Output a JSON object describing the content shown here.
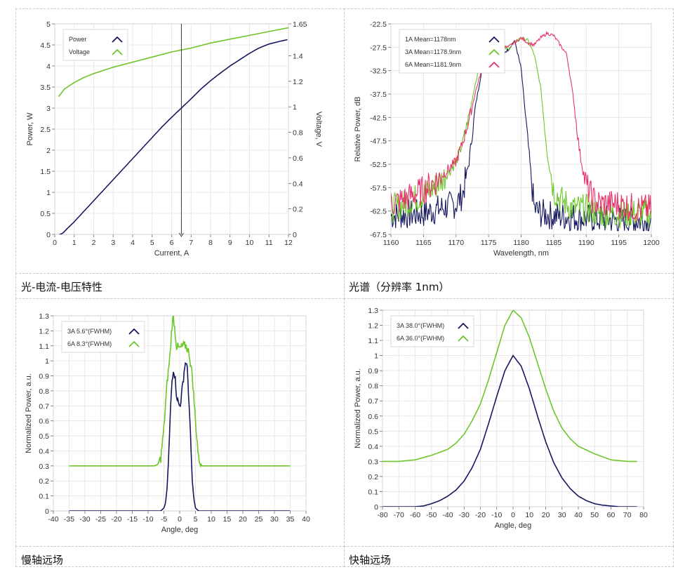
{
  "captions": {
    "piv": "光-电流-电压特性",
    "spectrum": "光谱（分辨率 1nm）",
    "slow_axis": "慢轴远场",
    "fast_axis": "快轴远场"
  },
  "colors": {
    "navy": "#15175f",
    "green": "#6cc62a",
    "pink": "#e8336b",
    "grid": "#e2e2e2",
    "axis": "#555555"
  },
  "chart_data": [
    {
      "id": "piv",
      "type": "line",
      "title": "",
      "xlabel": "Current, A",
      "ylabel": "Power, W",
      "y2label": "Voltage, V",
      "xlim": [
        0,
        12
      ],
      "ylim": [
        0,
        5
      ],
      "y2lim": [
        0,
        1.65
      ],
      "xticks": [
        "0",
        "1",
        "2",
        "3",
        "4",
        "5",
        "6",
        "7",
        "8",
        "9",
        "10",
        "11",
        "12"
      ],
      "yticks": [
        "0",
        "0.5",
        "1",
        "1.5",
        "2",
        "2.5",
        "3",
        "3.5",
        "4",
        "4.5",
        "5"
      ],
      "y2ticks": [
        "0",
        "0.2",
        "0.4",
        "0.6",
        "0.8",
        "1",
        "1.2",
        "1.4",
        "1.65"
      ],
      "legend_position": "top-left",
      "cursor_x": 6.5,
      "series": [
        {
          "name": "Power",
          "color": "navy",
          "axis": "y",
          "x": [
            0.25,
            0.4,
            0.6,
            1,
            1.5,
            2,
            2.5,
            3,
            3.5,
            4,
            4.5,
            5,
            5.5,
            6,
            6.5,
            7,
            7.5,
            8,
            8.5,
            9,
            9.5,
            10,
            10.5,
            11,
            11.5,
            12
          ],
          "y": [
            0,
            0.02,
            0.12,
            0.3,
            0.55,
            0.8,
            1.05,
            1.3,
            1.55,
            1.8,
            2.05,
            2.3,
            2.55,
            2.78,
            3.0,
            3.22,
            3.45,
            3.65,
            3.83,
            4.0,
            4.15,
            4.3,
            4.43,
            4.52,
            4.58,
            4.63
          ]
        },
        {
          "name": "Voltage",
          "color": "green",
          "axis": "y2",
          "x": [
            0.2,
            0.5,
            1,
            1.5,
            2,
            3,
            4,
            5,
            6,
            7,
            8,
            9,
            10,
            11,
            12
          ],
          "y": [
            1.08,
            1.14,
            1.19,
            1.23,
            1.26,
            1.31,
            1.35,
            1.39,
            1.43,
            1.46,
            1.5,
            1.53,
            1.56,
            1.59,
            1.62
          ]
        }
      ]
    },
    {
      "id": "spectrum",
      "type": "line",
      "title": "",
      "xlabel": "Wavelength, nm",
      "ylabel": "Relative Power, dB",
      "xlim": [
        1160,
        1200
      ],
      "ylim": [
        -67.5,
        -22.5
      ],
      "xticks": [
        "1160",
        "1165",
        "1170",
        "1175",
        "1180",
        "1185",
        "1190",
        "1195",
        "1200"
      ],
      "yticks": [
        "-67.5",
        "-62.5",
        "-57.5",
        "-52.5",
        "-47.5",
        "-42.5",
        "-37.5",
        "-32.5",
        "-27.5",
        "-22.5"
      ],
      "legend_position": "top-left",
      "series": [
        {
          "name": "1A Mean=1178nm",
          "color": "navy",
          "x": [
            1160,
            1165,
            1170,
            1171,
            1172,
            1173,
            1174,
            1175,
            1176,
            1177,
            1178,
            1179,
            1180,
            1181,
            1182,
            1183,
            1185,
            1190,
            1195,
            1200
          ],
          "y": [
            -63.5,
            -63,
            -61,
            -59,
            -52,
            -40,
            -32,
            -30,
            -29.5,
            -29,
            -28,
            -26,
            -32,
            -47,
            -62,
            -63,
            -63.5,
            -64,
            -64.5,
            -64.5
          ]
        },
        {
          "name": "3A Mean=1178.9nm",
          "color": "green",
          "x": [
            1160,
            1162,
            1165,
            1167,
            1169,
            1170,
            1171,
            1172,
            1173,
            1174,
            1175,
            1176,
            1177,
            1178,
            1179,
            1180,
            1181,
            1182,
            1183,
            1184,
            1185,
            1186,
            1187,
            1188,
            1190,
            1192,
            1195,
            1198,
            1200
          ],
          "y": [
            -62,
            -61,
            -59,
            -57,
            -54,
            -52,
            -48,
            -42,
            -35,
            -30,
            -27.5,
            -27,
            -27,
            -28,
            -26.5,
            -25.5,
            -26,
            -29,
            -36,
            -50,
            -58,
            -60,
            -61,
            -62,
            -62,
            -63,
            -63,
            -63,
            -63
          ]
        },
        {
          "name": "6A Mean=1181.9nm",
          "color": "pink",
          "x": [
            1160,
            1162,
            1165,
            1167,
            1170,
            1171,
            1172,
            1173,
            1174,
            1175,
            1176,
            1177,
            1178,
            1179,
            1180,
            1181,
            1182,
            1183,
            1184,
            1185,
            1186,
            1187,
            1188,
            1189,
            1190,
            1191,
            1192,
            1195,
            1198,
            1200
          ],
          "y": [
            -61,
            -60,
            -58,
            -56,
            -52,
            -48,
            -43,
            -37,
            -32,
            -29,
            -28,
            -27.5,
            -27.5,
            -26.5,
            -25.5,
            -26.5,
            -27,
            -25.5,
            -24.5,
            -25,
            -27,
            -29,
            -38,
            -50,
            -57,
            -60,
            -61,
            -61,
            -62,
            -62
          ]
        }
      ]
    },
    {
      "id": "slow_axis",
      "type": "line",
      "title": "",
      "xlabel": "Angle, deg",
      "ylabel": "Normalized Power, a.u.",
      "xlim": [
        -40,
        40
      ],
      "ylim": [
        0,
        1.3
      ],
      "xticks": [
        "-40",
        "-35",
        "-30",
        "-25",
        "-20",
        "-15",
        "-10",
        "-5",
        "0",
        "5",
        "10",
        "15",
        "20",
        "25",
        "30",
        "35",
        "40"
      ],
      "yticks": [
        "0",
        "0.1",
        "0.2",
        "0.3",
        "0.4",
        "0.5",
        "0.6",
        "0.7",
        "0.8",
        "0.9",
        "1",
        "1.1",
        "1.2",
        "1.3"
      ],
      "legend_position": "top-left",
      "series": [
        {
          "name": "3A 5.6°(FWHM)",
          "color": "navy",
          "x": [
            -35,
            -6,
            -5,
            -4.5,
            -4,
            -3.5,
            -3,
            -2.5,
            -2,
            -1.5,
            -1,
            -0.5,
            0,
            0.5,
            1,
            1.5,
            2,
            2.5,
            3,
            3.5,
            4,
            4.5,
            5,
            6,
            35
          ],
          "y": [
            0,
            0,
            0.02,
            0.05,
            0.15,
            0.35,
            0.62,
            0.85,
            0.95,
            0.9,
            0.78,
            0.72,
            0.7,
            0.75,
            0.85,
            0.95,
            1.0,
            0.92,
            0.7,
            0.45,
            0.2,
            0.08,
            0.02,
            0,
            0
          ]
        },
        {
          "name": "6A 8.3°(FWHM)",
          "color": "green",
          "x": [
            -35,
            -8,
            -7,
            -6,
            -5,
            -4,
            -3,
            -2.5,
            -2,
            -1.5,
            -1,
            0,
            1,
            2,
            3,
            4,
            5,
            6,
            7,
            35
          ],
          "y": [
            0.3,
            0.3,
            0.31,
            0.35,
            0.55,
            0.85,
            1.05,
            1.22,
            1.3,
            1.2,
            1.1,
            1.08,
            1.1,
            1.1,
            1.05,
            0.9,
            0.6,
            0.35,
            0.3,
            0.3
          ]
        }
      ]
    },
    {
      "id": "fast_axis",
      "type": "line",
      "title": "",
      "xlabel": "Angle, deg",
      "ylabel": "Normalized Power, a.u.",
      "xlim": [
        -80,
        80
      ],
      "ylim": [
        0,
        1.3
      ],
      "xticks": [
        "-80",
        "-70",
        "-60",
        "-50",
        "-40",
        "-30",
        "-20",
        "-10",
        "0",
        "10",
        "20",
        "30",
        "40",
        "50",
        "60",
        "70",
        "80"
      ],
      "yticks": [
        "0",
        "0.1",
        "0.2",
        "0.3",
        "0.4",
        "0.5",
        "0.6",
        "0.7",
        "0.8",
        "0.9",
        "1",
        "1.1",
        "1.2",
        "1.3"
      ],
      "legend_position": "top-left",
      "series": [
        {
          "name": "3A 38.0°(FWHM)",
          "color": "navy",
          "x": [
            -80,
            -60,
            -55,
            -50,
            -45,
            -40,
            -35,
            -30,
            -25,
            -20,
            -15,
            -10,
            -5,
            0,
            5,
            10,
            15,
            20,
            25,
            30,
            35,
            40,
            45,
            50,
            55,
            60,
            65,
            70,
            76
          ],
          "y": [
            0,
            0,
            0.005,
            0.02,
            0.04,
            0.07,
            0.11,
            0.17,
            0.26,
            0.38,
            0.55,
            0.73,
            0.9,
            1.0,
            0.93,
            0.78,
            0.6,
            0.43,
            0.29,
            0.19,
            0.12,
            0.07,
            0.04,
            0.02,
            0.01,
            0.005,
            0,
            0,
            0
          ]
        },
        {
          "name": "6A 36.0°(FWHM)",
          "color": "green",
          "x": [
            -80,
            -70,
            -60,
            -50,
            -40,
            -35,
            -30,
            -25,
            -20,
            -15,
            -10,
            -5,
            0,
            5,
            10,
            15,
            20,
            25,
            30,
            35,
            40,
            50,
            60,
            70,
            76
          ],
          "y": [
            0.3,
            0.3,
            0.31,
            0.34,
            0.38,
            0.42,
            0.48,
            0.57,
            0.68,
            0.84,
            1.02,
            1.2,
            1.3,
            1.25,
            1.12,
            0.95,
            0.78,
            0.63,
            0.52,
            0.45,
            0.4,
            0.35,
            0.31,
            0.3,
            0.3
          ]
        }
      ]
    }
  ]
}
